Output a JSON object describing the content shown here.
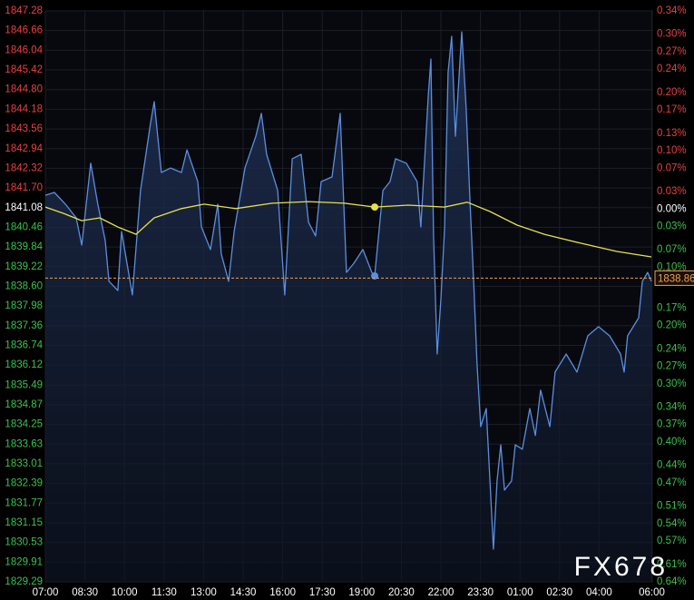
{
  "chart_data": {
    "type": "line",
    "reference": 1841.08,
    "up_color": "#e8423f",
    "down_color": "#3cc24c",
    "flat_color": "#ffffff",
    "grid": true,
    "ylim": [
      1829.29,
      1847.28
    ],
    "yticks": [
      1847.28,
      1846.66,
      1846.04,
      1845.42,
      {
        "value": 1844.8,
        "label": "1844.80"
      },
      1844.18,
      1843.56,
      1842.94,
      1842.32,
      {
        "value": 1841.7,
        "label": "1841.70"
      },
      1841.08,
      1840.46,
      1839.84,
      1839.22,
      {
        "value": 1838.6,
        "label": "1838.60"
      },
      1837.98,
      1837.36,
      1836.74,
      1836.12,
      1835.49,
      1834.87,
      1834.25,
      1833.63,
      1833.01,
      1832.39,
      1831.77,
      1831.15,
      1830.53,
      1829.91,
      1829.29
    ],
    "y2lim": [
      -0.64,
      0.34
    ],
    "y2ticks": [
      {
        "value": 0.34,
        "label": "0.34%"
      },
      {
        "value": 0.3,
        "label": "0.30%"
      },
      {
        "value": 0.27,
        "label": "0.27%"
      },
      {
        "value": 0.24,
        "label": "0.24%"
      },
      {
        "value": 0.2,
        "label": "0.20%"
      },
      {
        "value": 0.17,
        "label": "0.17%"
      },
      {
        "value": 0.13,
        "label": "0.13%"
      },
      {
        "value": 0.1,
        "label": "0.10%"
      },
      {
        "value": 0.07,
        "label": "0.07%"
      },
      {
        "value": 0.03,
        "label": "0.03%"
      },
      {
        "value": 0,
        "label": "0.00%"
      },
      {
        "value": -0.03,
        "label": "0.03%"
      },
      {
        "value": -0.07,
        "label": "0.07%"
      },
      {
        "value": -0.1,
        "label": "0.10%"
      },
      {
        "value": -0.17,
        "label": "0.17%"
      },
      {
        "value": -0.2,
        "label": "0.20%"
      },
      {
        "value": -0.24,
        "label": "0.24%"
      },
      {
        "value": -0.27,
        "label": "0.27%"
      },
      {
        "value": -0.3,
        "label": "0.30%"
      },
      {
        "value": -0.34,
        "label": "0.34%"
      },
      {
        "value": -0.37,
        "label": "0.37%"
      },
      {
        "value": -0.4,
        "label": "0.40%"
      },
      {
        "value": -0.44,
        "label": "0.44%"
      },
      {
        "value": -0.47,
        "label": "0.47%"
      },
      {
        "value": -0.51,
        "label": "0.51%"
      },
      {
        "value": -0.54,
        "label": "0.54%"
      },
      {
        "value": -0.57,
        "label": "0.57%"
      },
      {
        "value": -0.61,
        "label": "0.61%"
      },
      {
        "value": -0.64,
        "label": "0.64%"
      }
    ],
    "xlim": [
      0,
      23.05
    ],
    "xticks": [
      {
        "value": 0,
        "label": "07:00"
      },
      {
        "value": 1.5,
        "label": "08:30"
      },
      {
        "value": 3,
        "label": "10:00"
      },
      {
        "value": 4.5,
        "label": "11:30"
      },
      {
        "value": 6,
        "label": "13:00"
      },
      {
        "value": 7.5,
        "label": "14:30"
      },
      {
        "value": 9,
        "label": "16:00"
      },
      {
        "value": 10.5,
        "label": "17:30"
      },
      {
        "value": 12,
        "label": "19:00"
      },
      {
        "value": 13.5,
        "label": "20:30"
      },
      {
        "value": 15,
        "label": "22:00"
      },
      {
        "value": 16.5,
        "label": "23:30"
      },
      {
        "value": 18,
        "label": "01:00"
      },
      {
        "value": 19.5,
        "label": "02:30"
      },
      {
        "value": 21,
        "label": "04:00"
      },
      {
        "value": 23,
        "label": "06:00"
      }
    ],
    "series": [
      {
        "color": "#5b8ee0",
        "area": true,
        "x": [
          0,
          0.34,
          0.76,
          1.17,
          1.38,
          1.72,
          1.99,
          2.27,
          2.41,
          2.75,
          2.89,
          3.3,
          3.61,
          3.99,
          4.13,
          4.4,
          4.75,
          5.16,
          5.37,
          5.78,
          5.92,
          6.26,
          6.54,
          6.67,
          6.95,
          7.16,
          7.57,
          7.98,
          8.19,
          8.39,
          8.81,
          9.08,
          9.36,
          9.7,
          9.98,
          10.25,
          10.46,
          10.87,
          11.18,
          11.42,
          11.7,
          12.04,
          12.38,
          12.49,
          12.8,
          13.07,
          13.28,
          13.69,
          14.1,
          14.24,
          14.52,
          14.62,
          14.72,
          14.86,
          15.0,
          15.14,
          15.27,
          15.41,
          15.55,
          15.79,
          15.96,
          16.1,
          16.24,
          16.37,
          16.51,
          16.72,
          16.99,
          17.13,
          17.27,
          17.41,
          17.68,
          17.82,
          18.09,
          18.37,
          18.58,
          18.78,
          19.13,
          19.33,
          19.75,
          20.16,
          20.57,
          20.98,
          21.4,
          21.81,
          21.95,
          22.08,
          22.5,
          22.64,
          22.84,
          22.98
        ],
        "values": [
          1841.47,
          1841.56,
          1841.19,
          1840.76,
          1839.9,
          1842.48,
          1841.19,
          1840.04,
          1838.76,
          1838.47,
          1840.33,
          1838.33,
          1841.62,
          1843.76,
          1844.42,
          1842.19,
          1842.33,
          1842.19,
          1842.9,
          1841.9,
          1840.47,
          1839.76,
          1841.19,
          1839.62,
          1838.76,
          1840.33,
          1842.33,
          1843.33,
          1844.05,
          1842.76,
          1841.62,
          1838.33,
          1842.62,
          1842.76,
          1840.62,
          1840.19,
          1841.9,
          1842.05,
          1844.05,
          1839.04,
          1839.33,
          1839.76,
          1839.04,
          1838.93,
          1841.62,
          1841.9,
          1842.62,
          1842.48,
          1841.9,
          1840.47,
          1844.62,
          1845.76,
          1840.19,
          1836.47,
          1838.19,
          1840.47,
          1845.34,
          1846.48,
          1843.33,
          1846.62,
          1844.19,
          1841.33,
          1838.76,
          1836.18,
          1834.18,
          1834.75,
          1830.32,
          1832.47,
          1833.61,
          1832.18,
          1832.47,
          1833.61,
          1833.47,
          1834.75,
          1833.9,
          1835.33,
          1834.18,
          1835.9,
          1836.47,
          1835.9,
          1837.04,
          1837.33,
          1837.04,
          1836.47,
          1835.9,
          1837.04,
          1837.61,
          1838.76,
          1839.04,
          1838.76
        ]
      },
      {
        "color": "#e6e04a",
        "area": false,
        "x": [
          0,
          0.69,
          1.38,
          2.06,
          2.75,
          3.44,
          4.13,
          5.16,
          6.02,
          7.22,
          8.6,
          9.98,
          11.35,
          12.49,
          13.76,
          15.14,
          16.0,
          16.86,
          17.89,
          18.92,
          20.3,
          21.67,
          22.98
        ],
        "values": [
          1841.1,
          1840.9,
          1840.67,
          1840.76,
          1840.47,
          1840.24,
          1840.76,
          1841.05,
          1841.19,
          1841.05,
          1841.22,
          1841.27,
          1841.22,
          1841.1,
          1841.16,
          1841.1,
          1841.25,
          1840.96,
          1840.53,
          1840.24,
          1839.96,
          1839.7,
          1839.53
        ]
      }
    ],
    "highlight_x": 12.49,
    "last_price": 1838.86,
    "last_price_color": "#f0a050",
    "watermark": "FX678"
  }
}
